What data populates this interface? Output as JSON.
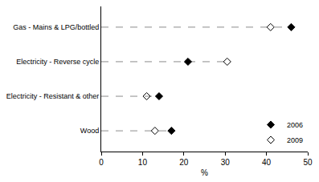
{
  "chart_data": {
    "type": "dot",
    "orientation": "horizontal",
    "x_label": "%",
    "categories": [
      "Gas - Mains & LPG/bottled",
      "Electricity - Reverse cycle",
      "Electricity - Resistant & other",
      "Wood"
    ],
    "series": [
      {
        "name": "2006",
        "color": "#000000",
        "marker": "diamond",
        "values": [
          46,
          21,
          14,
          17
        ]
      },
      {
        "name": "2009",
        "color": "#000000",
        "marker": "diamond-open",
        "values": [
          41,
          30.5,
          11,
          13
        ]
      }
    ],
    "xlim": [
      0,
      50
    ],
    "xticks": [
      0,
      10,
      20,
      30,
      40,
      50
    ],
    "grid": false,
    "legend": "bottom right"
  }
}
